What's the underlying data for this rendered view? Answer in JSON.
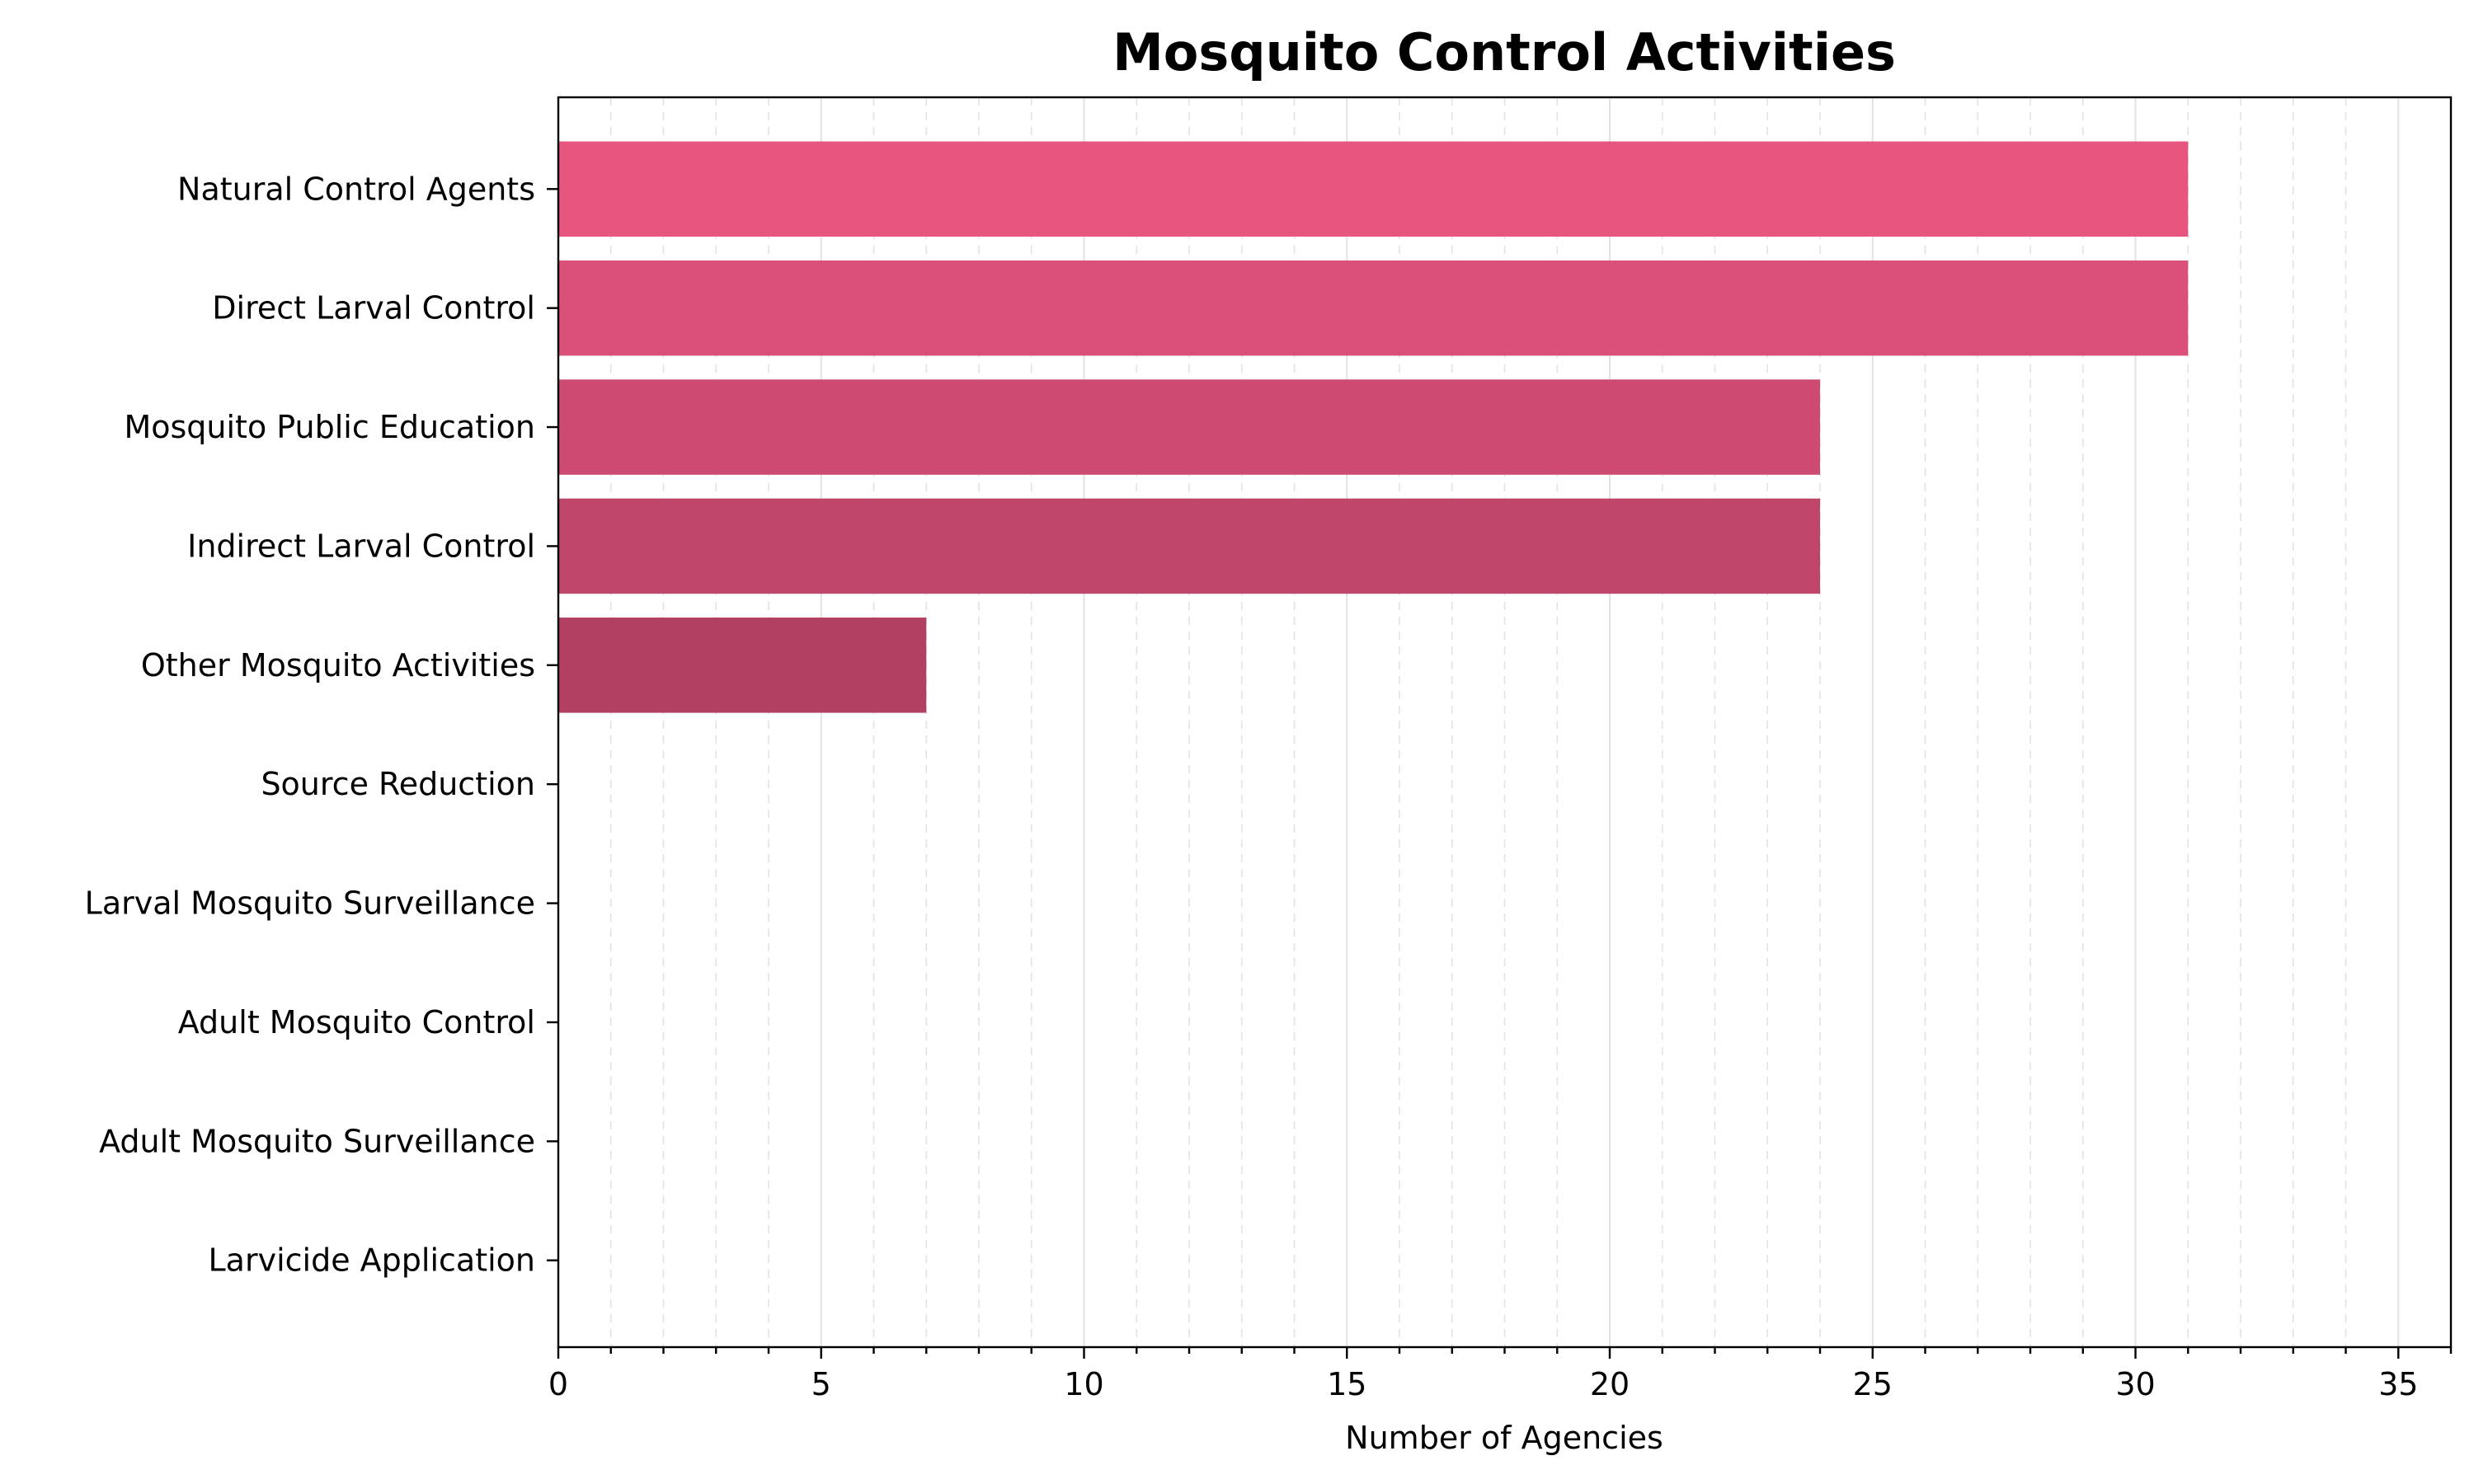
{
  "chart_data": {
    "type": "bar",
    "orientation": "horizontal",
    "title": "Mosquito Control Activities",
    "xlabel": "Number of Agencies",
    "ylabel": "",
    "xlim": [
      0,
      36
    ],
    "x_ticks": [
      0,
      5,
      10,
      15,
      20,
      25,
      30,
      35
    ],
    "grid": {
      "major": true,
      "minor": true,
      "axis": "x",
      "style": "dashed"
    },
    "categories": [
      "Natural Control Agents",
      "Direct Larval Control",
      "Mosquito Public Education",
      "Indirect Larval Control",
      "Other Mosquito Activities",
      "Source Reduction",
      "Larval Mosquito Surveillance",
      "Adult Mosquito Control",
      "Adult Mosquito Surveillance",
      "Larvicide Application"
    ],
    "values": [
      31,
      31,
      24,
      24,
      7,
      0,
      0,
      0,
      0,
      0
    ],
    "colors": [
      "#e8557f",
      "#da5078",
      "#cd4a71",
      "#bf456a",
      "#b24063",
      "#a43b5c",
      "#973655",
      "#89314e",
      "#7c2c47",
      "#6e2740"
    ]
  }
}
